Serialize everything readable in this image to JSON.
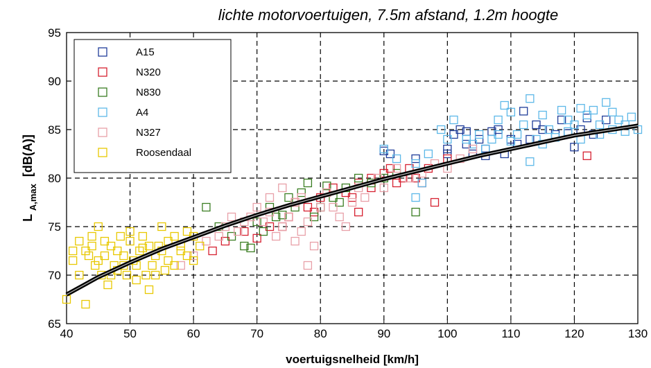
{
  "chart_data": {
    "type": "scatter",
    "title": "lichte motorvoertuigen, 7.5m afstand, 1.2m hoogte",
    "xlabel": "voertuigsnelheid [km/h]",
    "ylabel_main": "L",
    "ylabel_sub": "A,max",
    "ylabel_unit": "[dB(A)]",
    "xlim": [
      40,
      130
    ],
    "ylim": [
      65,
      95
    ],
    "xticks": [
      40,
      50,
      60,
      70,
      80,
      90,
      100,
      110,
      120,
      130
    ],
    "yticks": [
      65,
      70,
      75,
      80,
      85,
      90,
      95
    ],
    "grid": true,
    "legend_position": "top-left",
    "series": [
      {
        "name": "A15",
        "color": "#1f3c99",
        "points": [
          [
            90,
            82.8
          ],
          [
            91,
            82.5
          ],
          [
            95,
            82
          ],
          [
            100,
            83
          ],
          [
            101,
            84.5
          ],
          [
            102,
            85
          ],
          [
            103,
            83.5
          ],
          [
            104,
            82.5
          ],
          [
            105,
            84
          ],
          [
            106,
            83
          ],
          [
            107,
            84.8
          ],
          [
            108,
            85
          ],
          [
            109,
            82.5
          ],
          [
            110,
            84
          ],
          [
            111,
            83.5
          ],
          [
            112,
            86.9
          ],
          [
            113,
            84
          ],
          [
            115,
            85
          ],
          [
            117,
            84.5
          ],
          [
            118,
            86
          ],
          [
            120,
            83.2
          ],
          [
            121,
            85
          ],
          [
            123,
            84.5
          ],
          [
            125,
            86
          ],
          [
            100,
            82.5
          ],
          [
            103,
            84.8
          ],
          [
            106,
            82.3
          ],
          [
            114,
            85.5
          ],
          [
            119,
            84.6
          ],
          [
            122,
            86.2
          ]
        ]
      },
      {
        "name": "N320",
        "color": "#d62030",
        "points": [
          [
            63,
            72.5
          ],
          [
            65,
            73.5
          ],
          [
            68,
            74.5
          ],
          [
            70,
            73.8
          ],
          [
            72,
            75
          ],
          [
            75,
            76
          ],
          [
            78,
            77
          ],
          [
            80,
            78
          ],
          [
            82,
            79
          ],
          [
            84,
            78.5
          ],
          [
            86,
            79.5
          ],
          [
            88,
            80
          ],
          [
            90,
            80.5
          ],
          [
            92,
            79.5
          ],
          [
            94,
            81
          ],
          [
            95,
            80
          ],
          [
            97,
            81
          ],
          [
            98,
            77.5
          ],
          [
            100,
            82
          ],
          [
            122,
            82.3
          ],
          [
            86,
            76.5
          ],
          [
            85,
            78
          ],
          [
            88,
            79
          ],
          [
            91,
            81
          ],
          [
            93,
            80
          ],
          [
            96,
            79.5
          ],
          [
            74,
            75
          ],
          [
            76,
            77.5
          ],
          [
            79,
            76.5
          ]
        ]
      },
      {
        "name": "N830",
        "color": "#3a7d22",
        "points": [
          [
            62,
            77
          ],
          [
            64,
            75
          ],
          [
            66,
            74
          ],
          [
            68,
            73
          ],
          [
            69,
            72.8
          ],
          [
            70,
            75.5
          ],
          [
            72,
            77
          ],
          [
            73,
            76
          ],
          [
            75,
            78
          ],
          [
            76,
            77
          ],
          [
            78,
            79.5
          ],
          [
            79,
            76
          ],
          [
            80,
            77
          ],
          [
            82,
            78
          ],
          [
            84,
            79
          ],
          [
            86,
            80
          ],
          [
            88,
            79.5
          ],
          [
            90,
            80
          ],
          [
            92,
            80.5
          ],
          [
            95,
            76.5
          ],
          [
            77,
            78.5
          ],
          [
            81,
            79.2
          ],
          [
            83,
            77.5
          ],
          [
            71,
            74.5
          ],
          [
            74,
            76.2
          ]
        ]
      },
      {
        "name": "A4",
        "color": "#5db8e8",
        "points": [
          [
            90,
            83
          ],
          [
            92,
            82
          ],
          [
            95,
            81.5
          ],
          [
            97,
            82.5
          ],
          [
            99,
            85
          ],
          [
            100,
            84
          ],
          [
            101,
            86
          ],
          [
            103,
            84
          ],
          [
            104,
            83.5
          ],
          [
            105,
            84.5
          ],
          [
            106,
            83
          ],
          [
            107,
            84
          ],
          [
            108,
            86
          ],
          [
            109,
            87.5
          ],
          [
            110,
            86.8
          ],
          [
            111,
            84.5
          ],
          [
            112,
            85.5
          ],
          [
            113,
            88.2
          ],
          [
            114,
            84
          ],
          [
            115,
            83.5
          ],
          [
            116,
            85
          ],
          [
            117,
            84.2
          ],
          [
            118,
            87
          ],
          [
            119,
            86
          ],
          [
            120,
            85.5
          ],
          [
            121,
            84
          ],
          [
            122,
            86.5
          ],
          [
            123,
            87
          ],
          [
            124,
            85.5
          ],
          [
            125,
            87.8
          ],
          [
            126,
            85
          ],
          [
            127,
            86
          ],
          [
            128,
            85.5
          ],
          [
            129,
            86.3
          ],
          [
            130,
            85
          ],
          [
            113,
            81.7
          ],
          [
            108,
            84.5
          ],
          [
            110,
            83.8
          ],
          [
            115,
            86.5
          ],
          [
            119,
            84.8
          ],
          [
            121,
            87.2
          ],
          [
            124,
            84.5
          ],
          [
            126,
            86.8
          ],
          [
            128,
            84.8
          ],
          [
            95,
            78
          ],
          [
            96,
            79.5
          ]
        ]
      },
      {
        "name": "N327",
        "color": "#e8a0a8",
        "points": [
          [
            58,
            71
          ],
          [
            60,
            72
          ],
          [
            62,
            73.5
          ],
          [
            64,
            74
          ],
          [
            65,
            75
          ],
          [
            66,
            76
          ],
          [
            67,
            74.5
          ],
          [
            68,
            75.5
          ],
          [
            69,
            76
          ],
          [
            70,
            77
          ],
          [
            71,
            75.5
          ],
          [
            72,
            76.5
          ],
          [
            73,
            74
          ],
          [
            74,
            75
          ],
          [
            75,
            76
          ],
          [
            76,
            77.5
          ],
          [
            77,
            78
          ],
          [
            78,
            75.5
          ],
          [
            79,
            73
          ],
          [
            80,
            77
          ],
          [
            81,
            78.5
          ],
          [
            82,
            77
          ],
          [
            83,
            76
          ],
          [
            84,
            75
          ],
          [
            85,
            77.5
          ],
          [
            86,
            79
          ],
          [
            87,
            78
          ],
          [
            89,
            80
          ],
          [
            90,
            79
          ],
          [
            92,
            81
          ],
          [
            94,
            80
          ],
          [
            96,
            80.5
          ],
          [
            98,
            81.5
          ],
          [
            100,
            81
          ],
          [
            102,
            82
          ],
          [
            104,
            83
          ],
          [
            78,
            71
          ],
          [
            77,
            74.5
          ],
          [
            76,
            73.5
          ],
          [
            72,
            78
          ],
          [
            74,
            79
          ]
        ]
      },
      {
        "name": "Roosendaal",
        "color": "#e8c800",
        "points": [
          [
            40,
            67.5
          ],
          [
            41,
            71.5
          ],
          [
            42,
            73.5
          ],
          [
            43,
            67
          ],
          [
            43.5,
            72
          ],
          [
            44,
            74
          ],
          [
            44.5,
            71
          ],
          [
            45,
            75
          ],
          [
            45.5,
            70
          ],
          [
            46,
            72
          ],
          [
            46.5,
            69
          ],
          [
            47,
            73
          ],
          [
            47.5,
            71
          ],
          [
            48,
            70.5
          ],
          [
            48.5,
            74
          ],
          [
            49,
            72
          ],
          [
            49.5,
            70
          ],
          [
            50,
            73.5
          ],
          [
            50.5,
            71.5
          ],
          [
            51,
            69.5
          ],
          [
            51.5,
            72.5
          ],
          [
            52,
            74
          ],
          [
            52.5,
            70
          ],
          [
            53,
            68.5
          ],
          [
            53.5,
            71
          ],
          [
            54,
            72
          ],
          [
            54.5,
            73
          ],
          [
            55,
            75
          ],
          [
            55.5,
            70.5
          ],
          [
            56,
            71.5
          ],
          [
            57,
            74
          ],
          [
            58,
            73
          ],
          [
            59,
            72
          ],
          [
            60,
            74
          ],
          [
            41,
            72.5
          ],
          [
            42,
            70
          ],
          [
            43,
            72.5
          ],
          [
            44,
            73
          ],
          [
            45,
            71.5
          ],
          [
            46,
            73.5
          ],
          [
            47,
            70
          ],
          [
            48,
            72.5
          ],
          [
            49,
            71
          ],
          [
            50,
            74.5
          ],
          [
            51,
            71
          ],
          [
            52,
            72.8
          ],
          [
            53,
            73
          ],
          [
            54,
            70
          ],
          [
            55,
            72.5
          ],
          [
            56,
            73.5
          ],
          [
            57,
            71
          ],
          [
            58,
            72.5
          ],
          [
            59,
            74.5
          ],
          [
            60,
            71.5
          ],
          [
            61,
            73
          ]
        ]
      }
    ],
    "fit_curve": [
      [
        40,
        68
      ],
      [
        45,
        69.8
      ],
      [
        50,
        71.3
      ],
      [
        55,
        72.7
      ],
      [
        60,
        73.9
      ],
      [
        65,
        75.1
      ],
      [
        70,
        76.2
      ],
      [
        75,
        77.2
      ],
      [
        80,
        78.1
      ],
      [
        85,
        79
      ],
      [
        90,
        79.9
      ],
      [
        95,
        80.7
      ],
      [
        100,
        81.5
      ],
      [
        105,
        82.3
      ],
      [
        110,
        83
      ],
      [
        115,
        83.7
      ],
      [
        120,
        84.4
      ],
      [
        125,
        84.9
      ],
      [
        130,
        85.4
      ]
    ]
  }
}
